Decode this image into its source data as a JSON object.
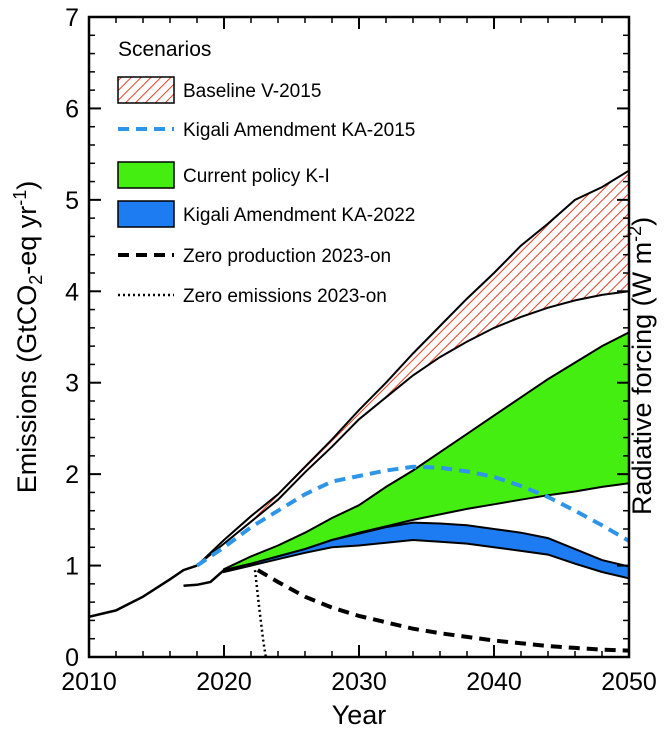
{
  "chart_data": {
    "type": "area",
    "xlabel": "Year",
    "ylabel": "Emissions (GtCO2-eq yr-1)",
    "ylabel_parts": {
      "pre": "Emissions (GtCO",
      "sub": "2",
      "mid": "-eq yr",
      "sup": "-1",
      "post": ")"
    },
    "right_label_fragment": "Radiative forcing (W m-2)",
    "right_label_parts": {
      "pre": "Radiative forcing (W m",
      "sup": "-2",
      "post": ")"
    },
    "xlim": [
      2010,
      2050
    ],
    "ylim": [
      0,
      7
    ],
    "x_ticks": [
      2010,
      2020,
      2030,
      2040,
      2050
    ],
    "y_ticks": [
      0,
      1,
      2,
      3,
      4,
      5,
      6,
      7
    ],
    "legend": {
      "title": "Scenarios",
      "position": "top-left",
      "entries": [
        {
          "key": "baseline",
          "label": "Baseline V-2015",
          "style": "hatched-band",
          "color": "#e8402a"
        },
        {
          "key": "ka2015",
          "label": "Kigali Amendment KA-2015",
          "style": "dashed-line",
          "color": "#2e95e8"
        },
        {
          "key": "current",
          "label": "Current policy K-I",
          "style": "band",
          "color": "#44ee11"
        },
        {
          "key": "ka2022",
          "label": "Kigali Amendment KA-2022",
          "style": "band",
          "color": "#1d7cf2"
        },
        {
          "key": "zeroprod",
          "label": "Zero production 2023-on",
          "style": "dashed-line",
          "color": "#000000"
        },
        {
          "key": "zeroemis",
          "label": "Zero emissions 2023-on",
          "style": "dotted-line",
          "color": "#000000"
        }
      ]
    },
    "history": {
      "x": [
        2010,
        2012,
        2014,
        2016,
        2017,
        2018
      ],
      "y": [
        0.44,
        0.51,
        0.66,
        0.85,
        0.95,
        1.0
      ]
    },
    "history_to_2020": {
      "x": [
        2017,
        2018,
        2019,
        2020
      ],
      "y": [
        0.78,
        0.79,
        0.82,
        0.95
      ]
    },
    "series": [
      {
        "name": "Baseline V-2015",
        "type": "band",
        "x": [
          2018,
          2020,
          2022,
          2024,
          2026,
          2028,
          2030,
          2032,
          2034,
          2036,
          2038,
          2040,
          2042,
          2044,
          2046,
          2048,
          2050
        ],
        "upper": [
          1.0,
          1.28,
          1.54,
          1.78,
          2.08,
          2.38,
          2.7,
          3.0,
          3.32,
          3.62,
          3.92,
          4.2,
          4.5,
          4.74,
          5.0,
          5.14,
          5.32
        ],
        "lower": [
          1.0,
          1.24,
          1.48,
          1.72,
          2.02,
          2.3,
          2.6,
          2.84,
          3.08,
          3.28,
          3.45,
          3.6,
          3.72,
          3.82,
          3.9,
          3.96,
          4.0
        ]
      },
      {
        "name": "Kigali Amendment KA-2015",
        "type": "line",
        "x": [
          2018,
          2020,
          2022,
          2024,
          2026,
          2028,
          2030,
          2032,
          2034,
          2036,
          2038,
          2040,
          2042,
          2044,
          2046,
          2048,
          2050
        ],
        "y": [
          1.0,
          1.2,
          1.42,
          1.6,
          1.78,
          1.92,
          1.98,
          2.04,
          2.08,
          2.07,
          2.03,
          1.97,
          1.87,
          1.75,
          1.6,
          1.44,
          1.27
        ]
      },
      {
        "name": "Current policy K-I",
        "type": "band",
        "x": [
          2020,
          2022,
          2024,
          2026,
          2028,
          2030,
          2032,
          2034,
          2036,
          2038,
          2040,
          2042,
          2044,
          2046,
          2048,
          2050
        ],
        "upper": [
          0.96,
          1.1,
          1.22,
          1.36,
          1.52,
          1.66,
          1.86,
          2.04,
          2.24,
          2.44,
          2.64,
          2.84,
          3.04,
          3.22,
          3.4,
          3.55
        ],
        "lower": [
          0.95,
          1.02,
          1.1,
          1.18,
          1.28,
          1.36,
          1.43,
          1.5,
          1.56,
          1.62,
          1.67,
          1.72,
          1.77,
          1.81,
          1.86,
          1.9
        ]
      },
      {
        "name": "Kigali Amendment KA-2022",
        "type": "band",
        "x": [
          2020,
          2022,
          2024,
          2026,
          2028,
          2030,
          2032,
          2034,
          2036,
          2038,
          2040,
          2042,
          2044,
          2046,
          2048,
          2050
        ],
        "upper": [
          0.95,
          1.02,
          1.1,
          1.18,
          1.28,
          1.35,
          1.42,
          1.47,
          1.46,
          1.44,
          1.4,
          1.36,
          1.3,
          1.18,
          1.06,
          0.99
        ],
        "lower": [
          0.93,
          1.0,
          1.07,
          1.14,
          1.2,
          1.22,
          1.25,
          1.28,
          1.26,
          1.24,
          1.2,
          1.16,
          1.12,
          1.02,
          0.93,
          0.86
        ]
      },
      {
        "name": "Zero production 2023-on",
        "type": "line",
        "x": [
          2022.5,
          2024,
          2026,
          2028,
          2030,
          2032,
          2034,
          2036,
          2038,
          2040,
          2042,
          2044,
          2046,
          2048,
          2050
        ],
        "y": [
          0.95,
          0.82,
          0.66,
          0.54,
          0.45,
          0.38,
          0.31,
          0.26,
          0.22,
          0.18,
          0.15,
          0.12,
          0.1,
          0.08,
          0.07
        ]
      },
      {
        "name": "Zero emissions 2023-on",
        "type": "line",
        "x": [
          2022.3,
          2022.6,
          2022.9,
          2023.1
        ],
        "y": [
          0.95,
          0.55,
          0.18,
          0.0
        ]
      }
    ]
  }
}
